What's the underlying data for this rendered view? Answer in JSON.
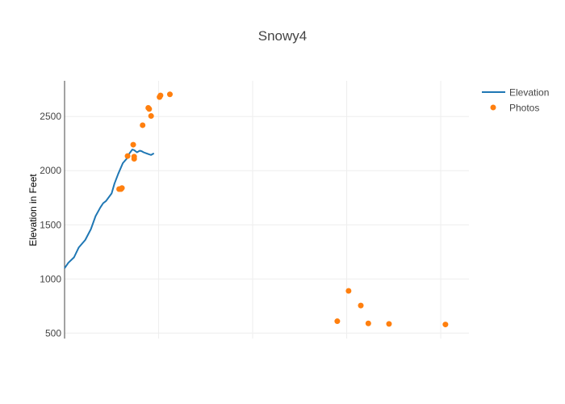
{
  "chart_data": {
    "type": "scatter",
    "title": "Snowy4",
    "xlabel": "",
    "ylabel": "Elevation in Feet",
    "x_ticks": [
      1,
      2,
      3,
      4
    ],
    "show_x_tick_labels": false,
    "y_ticks": [
      500,
      1000,
      1500,
      2000,
      2500
    ],
    "y_tick_labels": [
      "500",
      "1000",
      "1500",
      "2000",
      "2500"
    ],
    "xlim": [
      0,
      4.3
    ],
    "ylim": [
      450,
      2830
    ],
    "grid": true,
    "legend_position": "right",
    "series": [
      {
        "name": "Elevation",
        "mode": "lines",
        "color": "#1f77b4",
        "x": [
          0.0,
          0.04,
          0.1,
          0.15,
          0.22,
          0.28,
          0.33,
          0.38,
          0.41,
          0.44,
          0.5,
          0.53,
          0.57,
          0.62,
          0.66,
          0.69,
          0.72,
          0.74,
          0.77,
          0.8,
          0.82,
          0.84,
          0.87,
          0.9,
          0.92,
          0.95
        ],
        "y": [
          1100,
          1150,
          1200,
          1290,
          1360,
          1460,
          1580,
          1660,
          1700,
          1720,
          1790,
          1880,
          1970,
          2070,
          2110,
          2160,
          2195,
          2190,
          2170,
          2185,
          2180,
          2170,
          2160,
          2150,
          2145,
          2160
        ]
      },
      {
        "name": "Photos",
        "mode": "markers",
        "color": "#ff7f0e",
        "x": [
          0.58,
          0.6,
          0.61,
          0.67,
          0.73,
          0.74,
          0.74,
          0.83,
          0.89,
          0.9,
          0.92,
          1.01,
          1.02,
          1.12,
          2.9,
          3.02,
          3.15,
          3.23,
          3.45,
          4.05
        ],
        "y": [
          1830,
          1830,
          1840,
          2135,
          2240,
          2110,
          2130,
          2420,
          2580,
          2570,
          2505,
          2680,
          2695,
          2705,
          610,
          890,
          755,
          590,
          585,
          580
        ]
      }
    ]
  }
}
